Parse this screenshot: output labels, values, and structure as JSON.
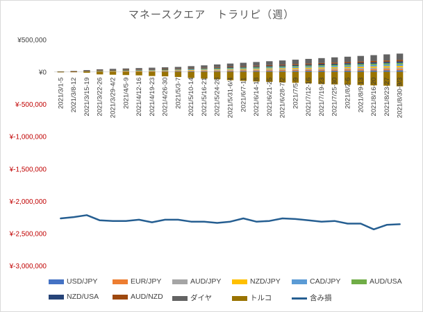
{
  "chart_data": {
    "type": "bar",
    "title": "マネースクエア　トラリピ（週）",
    "xlabel": "",
    "ylabel": "",
    "ylim": [
      -3000000,
      500000
    ],
    "yticks": [
      500000,
      0,
      -500000,
      -1000000,
      -1500000,
      -2000000,
      -2500000,
      -3000000
    ],
    "ytick_labels": [
      "¥500,000",
      "¥0",
      "¥-500,000",
      "¥-1,000,000",
      "¥-1,500,000",
      "¥-2,000,000",
      "¥-2,500,000",
      "¥-3,000,000"
    ],
    "negative_tick_color": "#c00000",
    "positive_tick_color": "#404040",
    "grid": false,
    "legend_position": "bottom",
    "categories": [
      "2021/3/1-5",
      "2021/3/8-12",
      "2021/3/15-19",
      "2021/3/22-26",
      "2021/3/29-4/2",
      "2021/4/5-9",
      "2021/4/12-16",
      "2021/4/19-23",
      "2021/4/26-30",
      "2021/5/3-7",
      "2021/5/10-14",
      "2021/5/16-21",
      "2021/5/24-28",
      "2021/5/31-6/4",
      "2021/6/7-11",
      "2021/6/14-18",
      "2021/6/21-25",
      "2021/6/28-7/2",
      "2021/7/5-9",
      "2021/7/12-16",
      "2021/7/19-23",
      "2021/7/25-30",
      "2021/8/2-6",
      "2021/8/9-13",
      "2021/8/16-20",
      "2021/8/23-27",
      "2021/8/30-9/3"
    ],
    "series": [
      {
        "name": "USD/JPY",
        "color": "#4472c4",
        "values": [
          500,
          1000,
          2000,
          3000,
          3500,
          4000,
          4500,
          5000,
          5500,
          6000,
          7000,
          8000,
          9000,
          10000,
          11000,
          12000,
          13000,
          14000,
          15000,
          16000,
          17000,
          18000,
          19000,
          20000,
          21000,
          22000,
          23000
        ]
      },
      {
        "name": "EUR/JPY",
        "color": "#ed7d31",
        "values": [
          500,
          1000,
          2000,
          3000,
          3500,
          4000,
          4500,
          5000,
          5500,
          6000,
          7000,
          8000,
          9000,
          10000,
          11000,
          12000,
          13000,
          14000,
          15000,
          16000,
          17000,
          18000,
          19000,
          20000,
          21000,
          22000,
          23000
        ]
      },
      {
        "name": "AUD/JPY",
        "color": "#a5a5a5",
        "values": [
          500,
          1000,
          2000,
          3000,
          3500,
          4000,
          4500,
          5000,
          5500,
          6000,
          7000,
          8000,
          9000,
          10000,
          11000,
          12000,
          13000,
          14000,
          15000,
          16000,
          17000,
          18000,
          19000,
          20000,
          21000,
          22000,
          23000
        ]
      },
      {
        "name": "NZD/JPY",
        "color": "#ffc000",
        "values": [
          500,
          1000,
          2000,
          3000,
          3500,
          4000,
          4500,
          5000,
          5500,
          6000,
          7000,
          8000,
          9000,
          10000,
          11000,
          12000,
          13000,
          14000,
          15000,
          16000,
          17000,
          18000,
          19000,
          20000,
          21000,
          22000,
          23000
        ]
      },
      {
        "name": "CAD/JPY",
        "color": "#5b9bd5",
        "values": [
          500,
          1000,
          2000,
          3000,
          3500,
          4000,
          4500,
          5000,
          5500,
          6000,
          7000,
          8000,
          9000,
          10000,
          11000,
          12000,
          13000,
          14000,
          15000,
          16000,
          17000,
          18000,
          19000,
          20000,
          21000,
          22000,
          23000
        ]
      },
      {
        "name": "AUD/USA",
        "color": "#70ad47",
        "values": [
          500,
          1000,
          2000,
          3000,
          3500,
          4000,
          4500,
          5000,
          5500,
          6000,
          7000,
          8000,
          9000,
          10000,
          11000,
          12000,
          13000,
          14000,
          15000,
          16000,
          17000,
          18000,
          19000,
          20000,
          21000,
          22000,
          23000
        ]
      },
      {
        "name": "NZD/USA",
        "color": "#264478",
        "values": [
          500,
          1000,
          2000,
          3000,
          3500,
          4000,
          4500,
          5000,
          5500,
          6000,
          7000,
          8000,
          9000,
          10000,
          11000,
          12000,
          13000,
          14000,
          15000,
          16000,
          17000,
          18000,
          19000,
          20000,
          21000,
          22000,
          23000
        ]
      },
      {
        "name": "AUD/NZD",
        "color": "#9e480e",
        "values": [
          500,
          1000,
          2000,
          3000,
          3500,
          4000,
          4500,
          5000,
          5500,
          6000,
          7000,
          8000,
          9000,
          10000,
          11000,
          12000,
          13000,
          14000,
          15000,
          16000,
          17000,
          18000,
          19000,
          20000,
          21000,
          22000,
          23000
        ]
      },
      {
        "name": "ダイヤ",
        "color": "#636363",
        "values": [
          2000,
          5000,
          10000,
          15000,
          18000,
          20000,
          22000,
          24000,
          26000,
          28000,
          32000,
          36000,
          42000,
          48000,
          52000,
          56000,
          60000,
          64000,
          68000,
          72000,
          76000,
          80000,
          82000,
          86000,
          90000,
          94000,
          98000
        ]
      },
      {
        "name": "トルコ",
        "color": "#997300",
        "values": [
          -8000,
          -5000,
          -15000,
          -40000,
          -45000,
          -50000,
          -55000,
          -65000,
          -70000,
          -80000,
          -95000,
          -105000,
          -115000,
          -130000,
          -140000,
          -150000,
          -155000,
          -165000,
          -170000,
          -180000,
          -190000,
          -195000,
          -200000,
          -205000,
          -210000,
          -215000,
          -225000
        ]
      }
    ],
    "line_series": {
      "name": "含み損",
      "color": "#255e91",
      "values": [
        -2270000,
        -2250000,
        -2220000,
        -2300000,
        -2310000,
        -2310000,
        -2290000,
        -2330000,
        -2290000,
        -2290000,
        -2320000,
        -2320000,
        -2340000,
        -2320000,
        -2270000,
        -2320000,
        -2310000,
        -2270000,
        -2280000,
        -2300000,
        -2320000,
        -2310000,
        -2350000,
        -2350000,
        -2440000,
        -2370000,
        -2360000
      ]
    }
  }
}
